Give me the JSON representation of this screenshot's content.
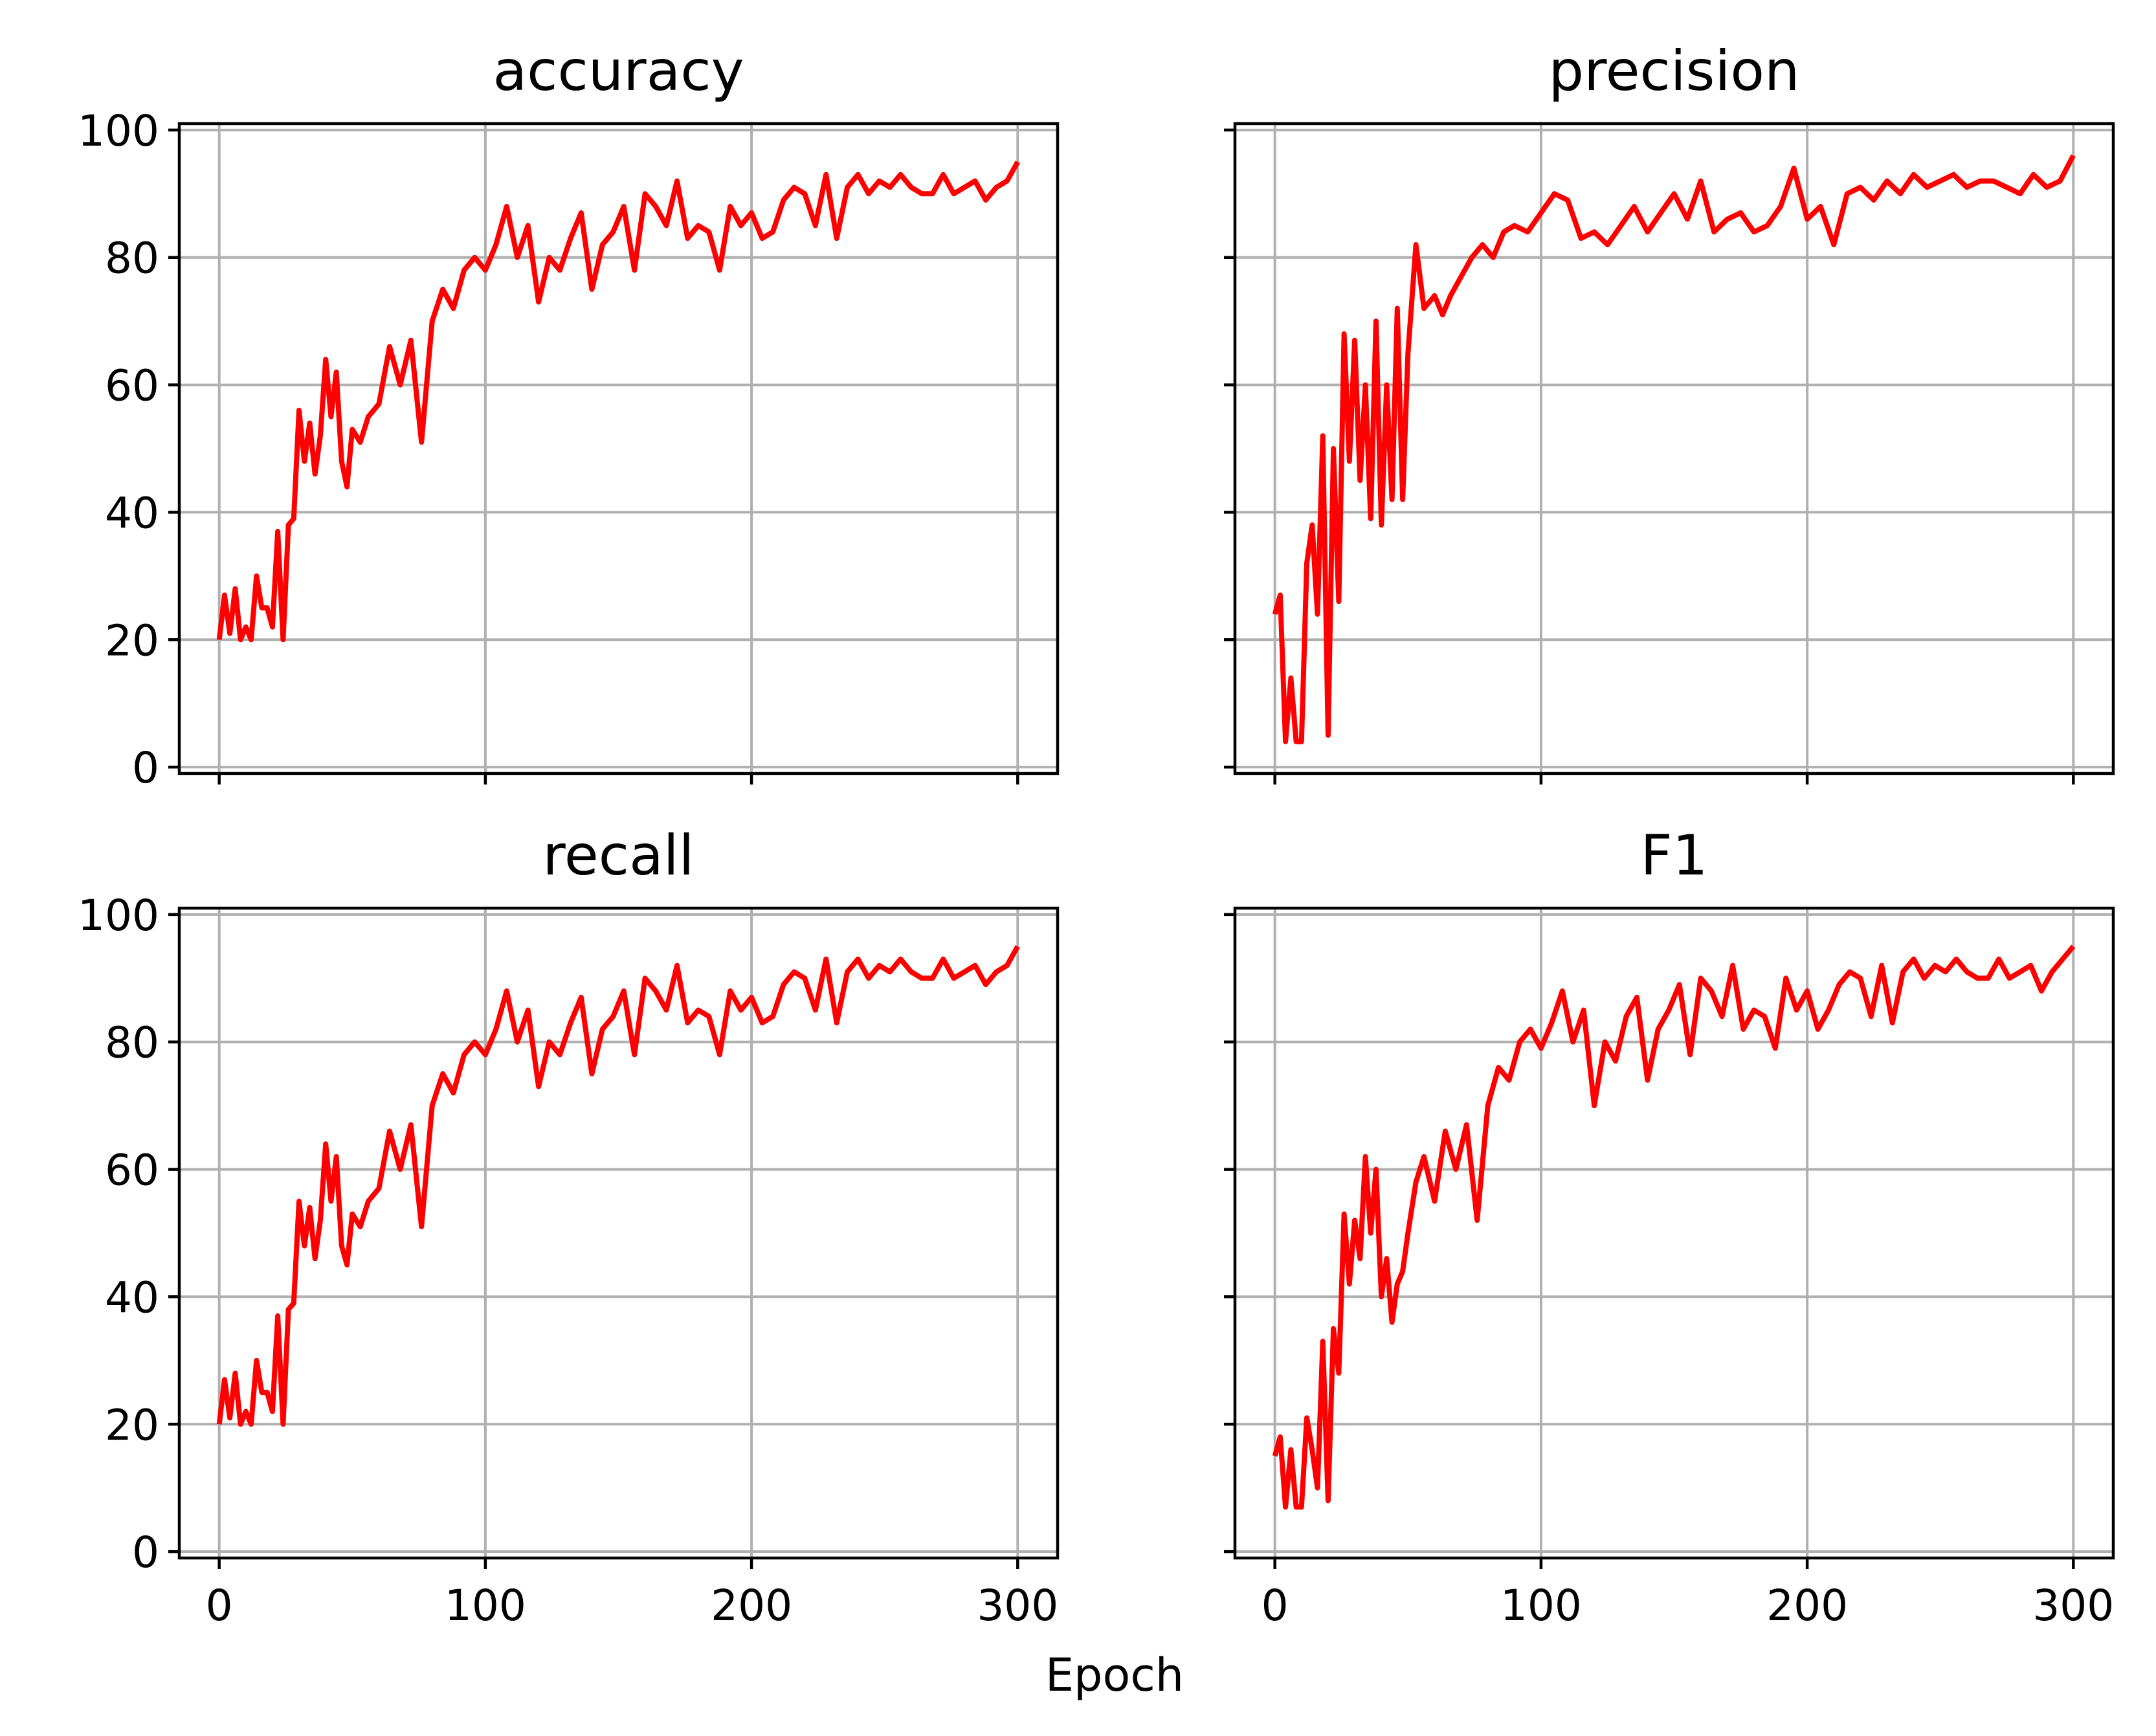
{
  "figure": {
    "xlabel": "Epoch",
    "line_color": "#ff0000",
    "grid_color": "#b0b0b0"
  },
  "chart_data": [
    {
      "type": "line",
      "title": "accuracy",
      "xlim": [
        -15,
        315
      ],
      "ylim": [
        -1,
        101
      ],
      "xticks": [
        0,
        100,
        200,
        300
      ],
      "yticks": [
        0,
        20,
        40,
        60,
        80,
        100
      ],
      "show_xticklabels": false,
      "show_yticklabels": true,
      "grid": true,
      "series": [
        {
          "x": [
            0,
            2,
            4,
            6,
            8,
            10,
            12,
            14,
            16,
            18,
            20,
            22,
            24,
            26,
            28,
            30,
            32,
            34,
            36,
            38,
            40,
            42,
            44,
            46,
            48,
            50,
            53,
            56,
            60,
            64,
            68,
            72,
            76,
            80,
            84,
            88,
            92,
            96,
            100,
            104,
            108,
            112,
            116,
            120,
            124,
            128,
            132,
            136,
            140,
            144,
            148,
            152,
            156,
            160,
            164,
            168,
            172,
            176,
            180,
            184,
            188,
            192,
            196,
            200,
            204,
            208,
            212,
            216,
            220,
            224,
            228,
            232,
            236,
            240,
            244,
            248,
            252,
            256,
            260,
            264,
            268,
            272,
            276,
            280,
            284,
            288,
            292,
            296,
            300
          ],
          "y": [
            20,
            27,
            21,
            28,
            20,
            22,
            20,
            30,
            25,
            25,
            22,
            37,
            20,
            38,
            39,
            56,
            48,
            54,
            46,
            52,
            64,
            55,
            62,
            48,
            44,
            53,
            51,
            55,
            57,
            66,
            60,
            67,
            51,
            70,
            75,
            72,
            78,
            80,
            78,
            82,
            88,
            80,
            85,
            73,
            80,
            78,
            83,
            87,
            75,
            82,
            84,
            88,
            78,
            90,
            88,
            85,
            92,
            83,
            85,
            84,
            78,
            88,
            85,
            87,
            83,
            84,
            89,
            91,
            90,
            85,
            93,
            83,
            91,
            93,
            90,
            92,
            91,
            93,
            91,
            90,
            90,
            93,
            90,
            91,
            92,
            89,
            91,
            92,
            95
          ]
        }
      ]
    },
    {
      "type": "line",
      "title": "precision",
      "xlim": [
        -15,
        315
      ],
      "ylim": [
        -1,
        101
      ],
      "xticks": [
        0,
        100,
        200,
        300
      ],
      "yticks": [
        0,
        20,
        40,
        60,
        80,
        100
      ],
      "show_xticklabels": false,
      "show_yticklabels": false,
      "grid": true,
      "series": [
        {
          "x": [
            0,
            2,
            4,
            6,
            8,
            10,
            12,
            14,
            16,
            18,
            20,
            22,
            24,
            26,
            28,
            30,
            32,
            34,
            36,
            38,
            40,
            42,
            44,
            46,
            48,
            50,
            53,
            56,
            60,
            63,
            66,
            70,
            74,
            78,
            82,
            86,
            90,
            95,
            100,
            105,
            110,
            115,
            120,
            125,
            130,
            135,
            140,
            145,
            150,
            155,
            160,
            165,
            170,
            175,
            180,
            185,
            190,
            195,
            200,
            205,
            210,
            215,
            220,
            225,
            230,
            235,
            240,
            245,
            250,
            255,
            260,
            265,
            270,
            275,
            280,
            285,
            290,
            295,
            300
          ],
          "y": [
            24,
            27,
            4,
            14,
            4,
            4,
            32,
            38,
            24,
            52,
            5,
            50,
            26,
            68,
            48,
            67,
            45,
            60,
            39,
            70,
            38,
            60,
            42,
            72,
            42,
            65,
            82,
            72,
            74,
            71,
            74,
            77,
            80,
            82,
            80,
            84,
            85,
            84,
            87,
            90,
            89,
            83,
            84,
            82,
            85,
            88,
            84,
            87,
            90,
            86,
            92,
            84,
            86,
            87,
            84,
            85,
            88,
            94,
            86,
            88,
            82,
            90,
            91,
            89,
            92,
            90,
            93,
            91,
            92,
            93,
            91,
            92,
            92,
            91,
            90,
            93,
            91,
            92,
            96
          ]
        }
      ]
    },
    {
      "type": "line",
      "title": "recall",
      "xlim": [
        -15,
        315
      ],
      "ylim": [
        -1,
        101
      ],
      "xticks": [
        0,
        100,
        200,
        300
      ],
      "yticks": [
        0,
        20,
        40,
        60,
        80,
        100
      ],
      "show_xticklabels": true,
      "show_yticklabels": true,
      "grid": true,
      "series": [
        {
          "x": [
            0,
            2,
            4,
            6,
            8,
            10,
            12,
            14,
            16,
            18,
            20,
            22,
            24,
            26,
            28,
            30,
            32,
            34,
            36,
            38,
            40,
            42,
            44,
            46,
            48,
            50,
            53,
            56,
            60,
            64,
            68,
            72,
            76,
            80,
            84,
            88,
            92,
            96,
            100,
            104,
            108,
            112,
            116,
            120,
            124,
            128,
            132,
            136,
            140,
            144,
            148,
            152,
            156,
            160,
            164,
            168,
            172,
            176,
            180,
            184,
            188,
            192,
            196,
            200,
            204,
            208,
            212,
            216,
            220,
            224,
            228,
            232,
            236,
            240,
            244,
            248,
            252,
            256,
            260,
            264,
            268,
            272,
            276,
            280,
            284,
            288,
            292,
            296,
            300
          ],
          "y": [
            20,
            27,
            21,
            28,
            20,
            22,
            20,
            30,
            25,
            25,
            22,
            37,
            20,
            38,
            39,
            55,
            48,
            54,
            46,
            52,
            64,
            55,
            62,
            48,
            45,
            53,
            51,
            55,
            57,
            66,
            60,
            67,
            51,
            70,
            75,
            72,
            78,
            80,
            78,
            82,
            88,
            80,
            85,
            73,
            80,
            78,
            83,
            87,
            75,
            82,
            84,
            88,
            78,
            90,
            88,
            85,
            92,
            83,
            85,
            84,
            78,
            88,
            85,
            87,
            83,
            84,
            89,
            91,
            90,
            85,
            93,
            83,
            91,
            93,
            90,
            92,
            91,
            93,
            91,
            90,
            90,
            93,
            90,
            91,
            92,
            89,
            91,
            92,
            95
          ]
        }
      ]
    },
    {
      "type": "line",
      "title": "F1",
      "xlim": [
        -15,
        315
      ],
      "ylim": [
        -1,
        101
      ],
      "xticks": [
        0,
        100,
        200,
        300
      ],
      "yticks": [
        0,
        20,
        40,
        60,
        80,
        100
      ],
      "show_xticklabels": true,
      "show_yticklabels": false,
      "grid": true,
      "series": [
        {
          "x": [
            0,
            2,
            4,
            6,
            8,
            10,
            12,
            14,
            16,
            18,
            20,
            22,
            24,
            26,
            28,
            30,
            32,
            34,
            36,
            38,
            40,
            42,
            44,
            46,
            48,
            50,
            53,
            56,
            60,
            64,
            68,
            72,
            76,
            80,
            84,
            88,
            92,
            96,
            100,
            104,
            108,
            112,
            116,
            120,
            124,
            128,
            132,
            136,
            140,
            144,
            148,
            152,
            156,
            160,
            164,
            168,
            172,
            176,
            180,
            184,
            188,
            192,
            196,
            200,
            204,
            208,
            212,
            216,
            220,
            224,
            228,
            232,
            236,
            240,
            244,
            248,
            252,
            256,
            260,
            264,
            268,
            272,
            276,
            280,
            284,
            288,
            292,
            296,
            300
          ],
          "y": [
            15,
            18,
            7,
            16,
            7,
            7,
            21,
            16,
            10,
            33,
            8,
            35,
            28,
            53,
            42,
            52,
            46,
            62,
            50,
            60,
            40,
            46,
            36,
            42,
            44,
            50,
            58,
            62,
            55,
            66,
            60,
            67,
            52,
            70,
            76,
            74,
            80,
            82,
            79,
            83,
            88,
            80,
            85,
            70,
            80,
            77,
            84,
            87,
            74,
            82,
            85,
            89,
            78,
            90,
            88,
            84,
            92,
            82,
            85,
            84,
            79,
            90,
            85,
            88,
            82,
            85,
            89,
            91,
            90,
            84,
            92,
            83,
            91,
            93,
            90,
            92,
            91,
            93,
            91,
            90,
            90,
            93,
            90,
            91,
            92,
            88,
            91,
            93,
            95
          ]
        }
      ]
    }
  ]
}
